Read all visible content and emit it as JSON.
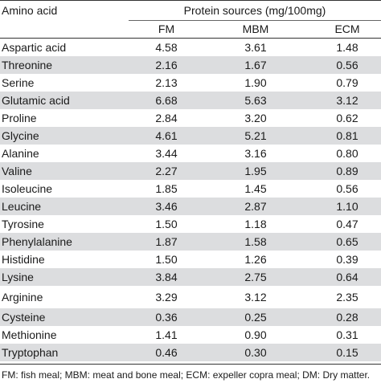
{
  "table": {
    "row_header": "Amino acid",
    "group_header": "Protein sources (mg/100mg)",
    "columns": [
      "FM",
      "MBM",
      "ECM"
    ],
    "rows": [
      [
        "Aspartic acid",
        "4.58",
        "3.61",
        "1.48"
      ],
      [
        "Threonine",
        "2.16",
        "1.67",
        "0.56"
      ],
      [
        "Serine",
        "2.13",
        "1.90",
        "0.79"
      ],
      [
        "Glutamic acid",
        "6.68",
        "5.63",
        "3.12"
      ],
      [
        "Proline",
        "2.84",
        "3.20",
        "0.62"
      ],
      [
        "Glycine",
        "4.61",
        "5.21",
        "0.81"
      ],
      [
        "Alanine",
        "3.44",
        "3.16",
        "0.80"
      ],
      [
        "Valine",
        "2.27",
        "1.95",
        "0.89"
      ],
      [
        "Isoleucine",
        "1.85",
        "1.45",
        "0.56"
      ],
      [
        "Leucine",
        "3.46",
        "2.87",
        "1.10"
      ],
      [
        "Tyrosine",
        "1.50",
        "1.18",
        "0.47"
      ],
      [
        "Phenylalanine",
        "1.87",
        "1.58",
        "0.65"
      ],
      [
        "Histidine",
        "1.50",
        "1.26",
        "0.39"
      ],
      [
        "Lysine",
        "3.84",
        "2.75",
        "0.64"
      ],
      [
        "Arginine",
        "3.29",
        "3.12",
        "2.35"
      ],
      [
        "Cysteine",
        "0.36",
        "0.25",
        "0.28"
      ],
      [
        "Methionine",
        "1.41",
        "0.90",
        "0.31"
      ],
      [
        "Tryptophan",
        "0.46",
        "0.30",
        "0.15"
      ]
    ]
  },
  "footnote": "FM: fish meal; MBM: meat and bone meal; ECM: expeller copra meal; DM: Dry matter."
}
